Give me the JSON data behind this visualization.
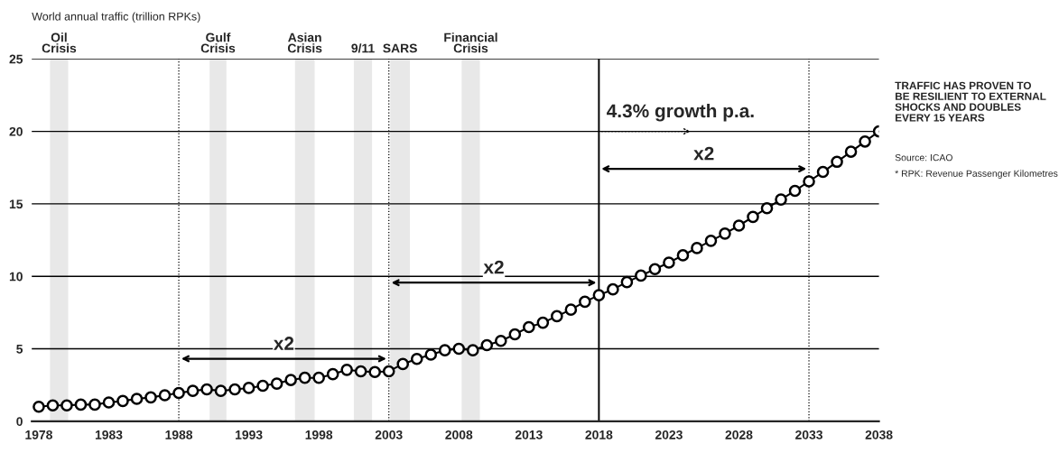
{
  "chart_data": {
    "type": "line",
    "ylabel": "World annual traffic (trillion RPKs)",
    "x": [
      1978,
      1979,
      1980,
      1981,
      1982,
      1983,
      1984,
      1985,
      1986,
      1987,
      1988,
      1989,
      1990,
      1991,
      1992,
      1993,
      1994,
      1995,
      1996,
      1997,
      1998,
      1999,
      2000,
      2001,
      2002,
      2003,
      2004,
      2005,
      2006,
      2007,
      2008,
      2009,
      2010,
      2011,
      2012,
      2013,
      2014,
      2015,
      2016,
      2017,
      2018,
      2019,
      2020,
      2021,
      2022,
      2023,
      2024,
      2025,
      2026,
      2027,
      2028,
      2029,
      2030,
      2031,
      2032,
      2033,
      2034,
      2035,
      2036,
      2037,
      2038
    ],
    "series": [
      {
        "color": "#000000",
        "values": [
          1.0,
          1.1,
          1.1,
          1.15,
          1.15,
          1.3,
          1.4,
          1.55,
          1.65,
          1.8,
          1.95,
          2.1,
          2.2,
          2.1,
          2.2,
          2.3,
          2.45,
          2.6,
          2.85,
          3.0,
          3.0,
          3.25,
          3.55,
          3.45,
          3.4,
          3.45,
          3.95,
          4.3,
          4.6,
          4.9,
          5.0,
          4.9,
          5.25,
          5.55,
          6.0,
          6.5,
          6.8,
          7.25,
          7.7,
          8.25,
          8.7,
          9.1,
          9.6,
          10.05,
          10.5,
          10.95,
          11.45,
          11.95,
          12.45,
          12.95,
          13.5,
          14.1,
          14.7,
          15.3,
          15.9,
          16.55,
          17.2,
          17.9,
          18.6,
          19.3,
          20.0
        ]
      }
    ],
    "marker": "circle",
    "line_style": "solid",
    "grid": "y",
    "legend": false,
    "xlim": [
      1977.5,
      2038
    ],
    "ylim": [
      0,
      25
    ],
    "xticks": [
      1978,
      1983,
      1988,
      1993,
      1998,
      2003,
      2008,
      2013,
      2018,
      2023,
      2028,
      2033,
      2038
    ],
    "yticks": [
      0,
      5,
      10,
      15,
      20,
      25
    ],
    "ref_lines": [
      {
        "axis": "x",
        "value": 2018,
        "line_style": "solid"
      },
      {
        "axis": "x",
        "value": 1988,
        "line_style": "dotted"
      },
      {
        "axis": "x",
        "value": 2003,
        "line_style": "dotted"
      },
      {
        "axis": "x",
        "value": 2033,
        "line_style": "dotted"
      }
    ],
    "bands": [
      {
        "axis": "x",
        "from": 1978.8,
        "to": 1980.1,
        "label": "Oil\nCrisis",
        "color": "#e8e8e8"
      },
      {
        "axis": "x",
        "from": 1990.2,
        "to": 1991.4,
        "label": "Gulf\nCrisis",
        "color": "#e8e8e8"
      },
      {
        "axis": "x",
        "from": 1996.3,
        "to": 1997.7,
        "label": "Asian\nCrisis",
        "color": "#e8e8e8"
      },
      {
        "axis": "x",
        "from": 2000.5,
        "to": 2001.8,
        "label": "9/11",
        "color": "#e8e8e8"
      },
      {
        "axis": "x",
        "from": 2003.1,
        "to": 2004.5,
        "label": "SARS",
        "color": "#e8e8e8"
      },
      {
        "axis": "x",
        "from": 2008.2,
        "to": 2009.5,
        "label": "Financial\nCrisis",
        "color": "#e8e8e8"
      }
    ],
    "annotations": [
      "x2",
      "x2",
      "x2",
      {
        "text": "4.3% growth p.a.",
        "x": 2018,
        "y": 20
      },
      "TRAFFIC HAS PROVEN TO\nBE RESILIENT TO EXTERNAL\nSHOCKS AND DOUBLES\nEVERY 15 YEARS",
      "Source: ICAO",
      "* RPK: Revenue Passenger Kilometres"
    ]
  }
}
